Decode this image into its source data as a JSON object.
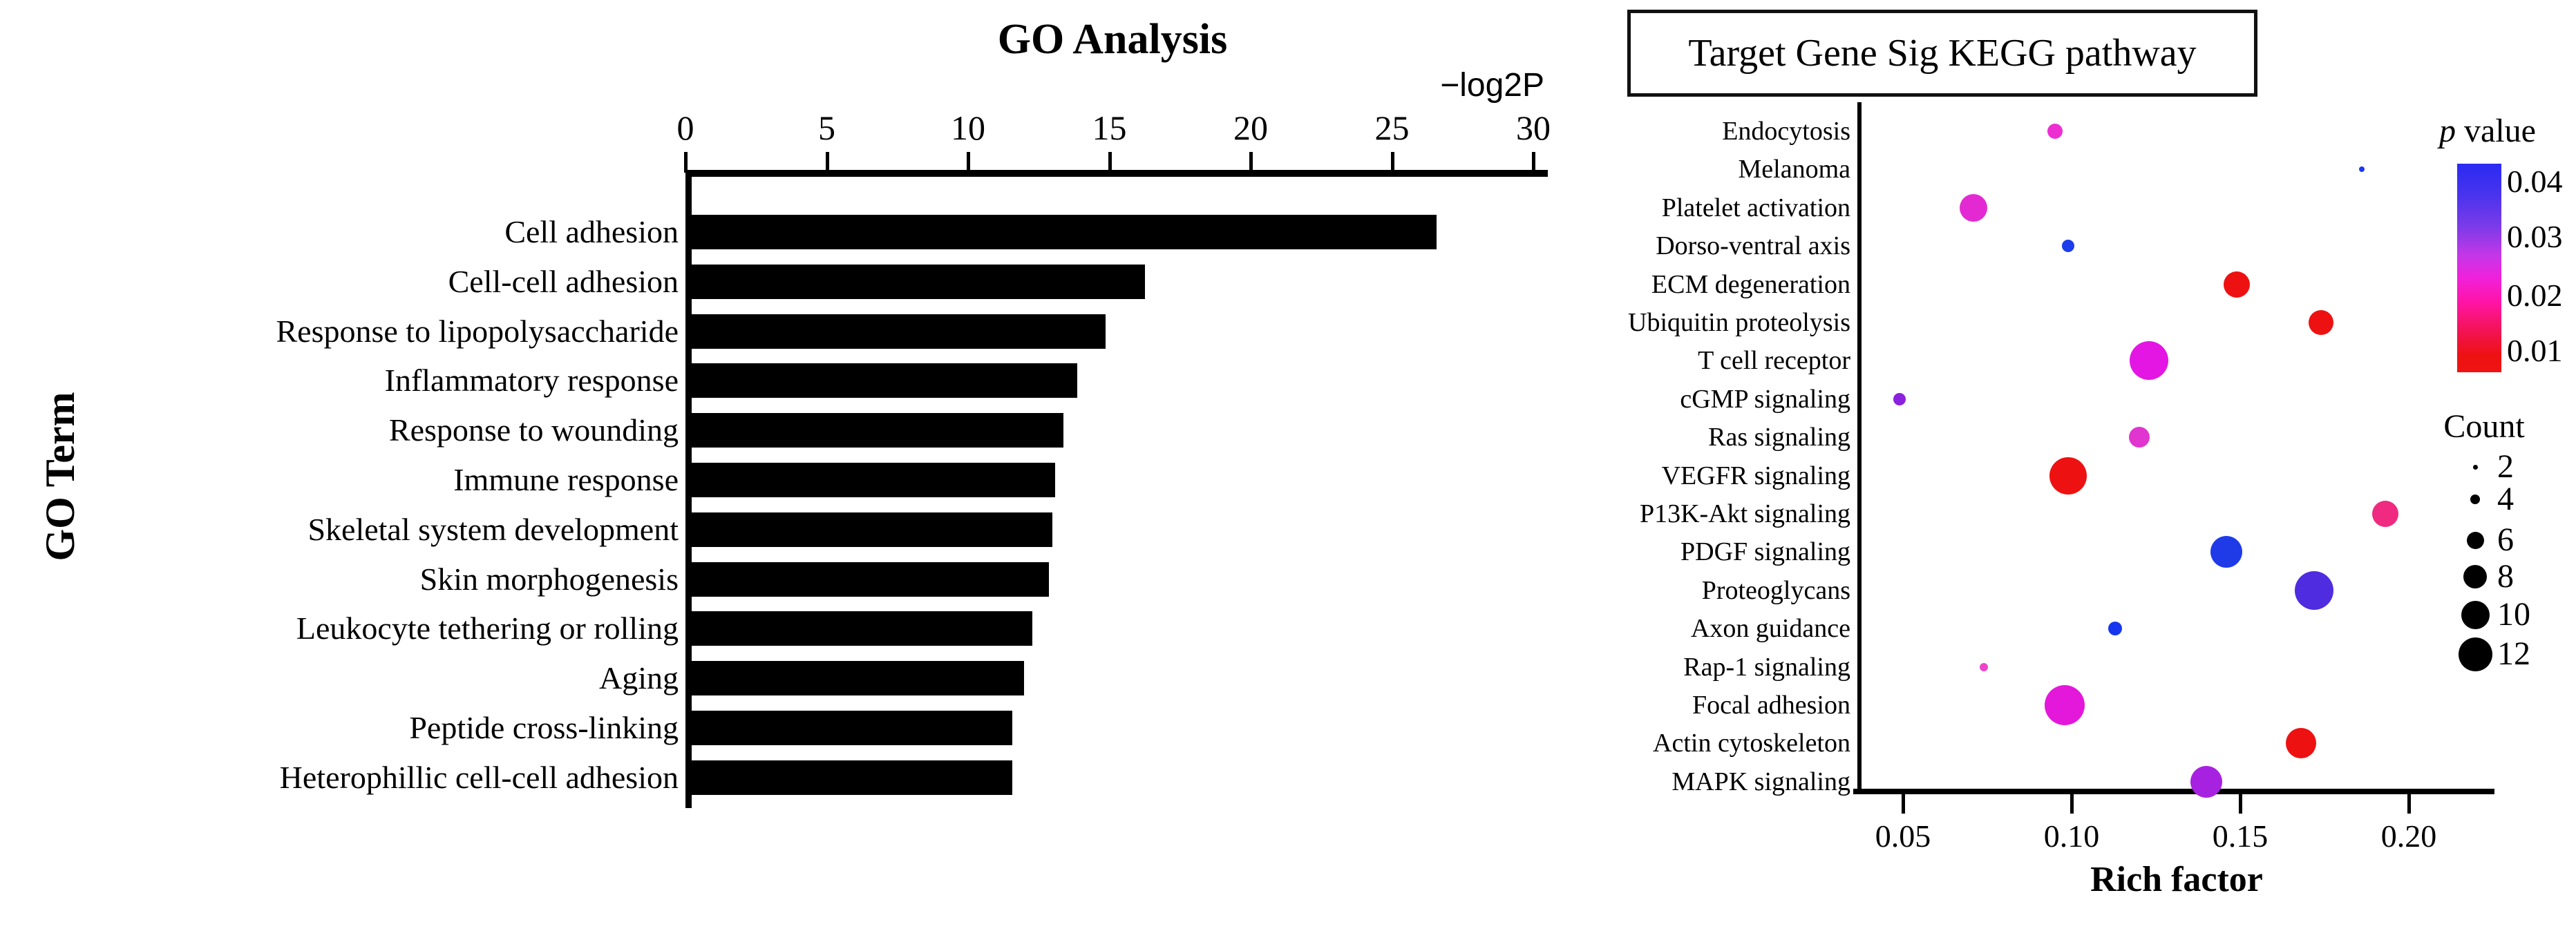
{
  "chart_data": [
    {
      "id": "go",
      "type": "bar",
      "orientation": "horizontal",
      "title": "GO Analysis",
      "xlabel": "−log2P",
      "ylabel": "GO Term",
      "xlim": [
        0,
        30
      ],
      "x_ticks": [
        0,
        5,
        10,
        15,
        20,
        25,
        30
      ],
      "bar_color": "#000000",
      "categories": [
        "Cell adhesion",
        "Cell-cell adhesion",
        "Response to lipopolysaccharide",
        "Inflammatory response",
        "Response to wounding",
        "Immune response",
        "Skeletal system development",
        "Skin morphogenesis",
        "Leukocyte tethering or rolling",
        "Aging",
        "Peptide cross-linking",
        "Heterophillic cell-cell adhesion"
      ],
      "values": [
        26.4,
        16.1,
        14.7,
        13.7,
        13.2,
        12.9,
        12.8,
        12.7,
        12.1,
        11.8,
        11.4,
        11.4
      ]
    },
    {
      "id": "kegg",
      "type": "scatter",
      "title": "Target Gene Sig KEGG pathway",
      "xlabel": "Rich factor",
      "x_tick_labels": [
        "0.05",
        "0.10",
        "0.15",
        "0.20"
      ],
      "x_tick_values": [
        0.05,
        0.1,
        0.15,
        0.2
      ],
      "xlim": [
        0.037,
        0.225
      ],
      "series": [
        {
          "pathway": "Endocytosis",
          "rich_factor": 0.095,
          "count": 4,
          "p_value": 0.026,
          "color": "#ed2fd2",
          "radius": 11
        },
        {
          "pathway": "Melanoma",
          "rich_factor": 0.186,
          "count": 2,
          "p_value": 0.04,
          "color": "#1b38f0",
          "radius": 4
        },
        {
          "pathway": "Platelet activation",
          "rich_factor": 0.071,
          "count": 8,
          "p_value": 0.025,
          "color": "#e32ad2",
          "radius": 20
        },
        {
          "pathway": "Dorso-ventral axis",
          "rich_factor": 0.099,
          "count": 4,
          "p_value": 0.04,
          "color": "#1d3cec",
          "radius": 9
        },
        {
          "pathway": "ECM degeneration",
          "rich_factor": 0.149,
          "count": 8,
          "p_value": 0.01,
          "color": "#ee1111",
          "radius": 19
        },
        {
          "pathway": "Ubiquitin proteolysis",
          "rich_factor": 0.174,
          "count": 8,
          "p_value": 0.01,
          "color": "#ee1111",
          "radius": 18
        },
        {
          "pathway": "T cell receptor",
          "rich_factor": 0.123,
          "count": 12,
          "p_value": 0.024,
          "color": "#e316e3",
          "radius": 28
        },
        {
          "pathway": "cGMP signaling",
          "rich_factor": 0.049,
          "count": 4,
          "p_value": 0.032,
          "color": "#8b22dd",
          "radius": 9
        },
        {
          "pathway": "Ras signaling",
          "rich_factor": 0.12,
          "count": 6,
          "p_value": 0.026,
          "color": "#e135cf",
          "radius": 15
        },
        {
          "pathway": "VEGFR signaling",
          "rich_factor": 0.099,
          "count": 12,
          "p_value": 0.008,
          "color": "#ee1111",
          "radius": 27
        },
        {
          "pathway": "P13K-Akt signaling",
          "rich_factor": 0.193,
          "count": 8,
          "p_value": 0.016,
          "color": "#ef2a80",
          "radius": 19
        },
        {
          "pathway": "PDGF signaling",
          "rich_factor": 0.146,
          "count": 10,
          "p_value": 0.04,
          "color": "#1f3be8",
          "radius": 23
        },
        {
          "pathway": "Proteoglycans",
          "rich_factor": 0.172,
          "count": 12,
          "p_value": 0.036,
          "color": "#4f2cdf",
          "radius": 28
        },
        {
          "pathway": "Axon guidance",
          "rich_factor": 0.113,
          "count": 4,
          "p_value": 0.04,
          "color": "#1536ee",
          "radius": 10
        },
        {
          "pathway": "Rap-1 signaling",
          "rich_factor": 0.074,
          "count": 2,
          "p_value": 0.024,
          "color": "#ee44cc",
          "radius": 6
        },
        {
          "pathway": "Focal adhesion",
          "rich_factor": 0.098,
          "count": 12,
          "p_value": 0.024,
          "color": "#e318da",
          "radius": 29
        },
        {
          "pathway": "Actin cytoskeleton",
          "rich_factor": 0.168,
          "count": 10,
          "p_value": 0.009,
          "color": "#ee1111",
          "radius": 22
        },
        {
          "pathway": "MAPK signaling",
          "rich_factor": 0.14,
          "count": 10,
          "p_value": 0.03,
          "color": "#a722e0",
          "radius": 23
        }
      ],
      "p_legend": {
        "title_p": "p",
        "title_rest": " value",
        "tick_labels": [
          "0.04",
          "0.03",
          "0.02",
          "0.01"
        ],
        "gradient_top": "#2b2af2",
        "gradient_mid": "#ee22dd",
        "gradient_bottom": "#ee1111"
      },
      "count_legend": {
        "title": "Count",
        "items": [
          {
            "label": "2",
            "radius": 3.5
          },
          {
            "label": "4",
            "radius": 7
          },
          {
            "label": "6",
            "radius": 12.5
          },
          {
            "label": "8",
            "radius": 17
          },
          {
            "label": "10",
            "radius": 20.5
          },
          {
            "label": "12",
            "radius": 24.5
          }
        ]
      }
    }
  ]
}
